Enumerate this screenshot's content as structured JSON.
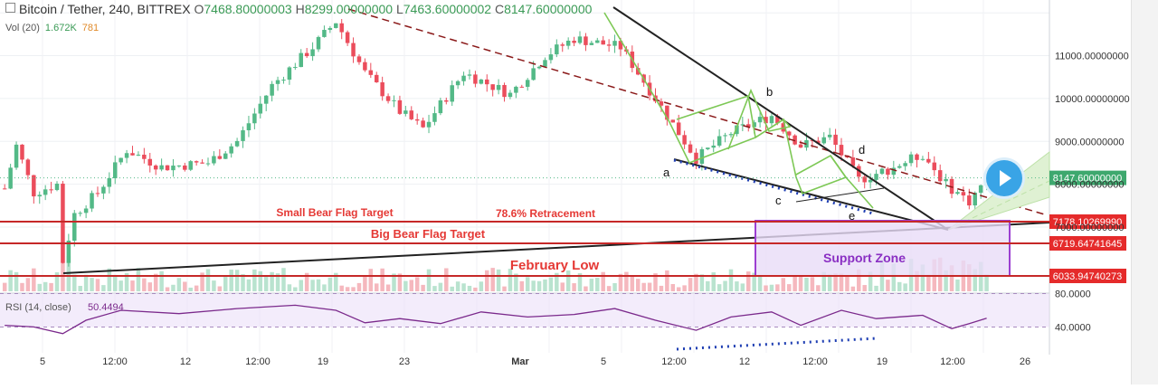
{
  "header": {
    "symbol": "Bitcoin / Tether, 240, BITTREX",
    "o_label": "O",
    "o_value": "7468.80000003",
    "h_label": "H",
    "h_value": "8299.00000000",
    "l_label": "L",
    "l_value": "7463.60000002",
    "c_label": "C",
    "c_value": "8147.60000000"
  },
  "volume_legend": {
    "label": "Vol (20)",
    "value": "1.672K",
    "ma": "781"
  },
  "rsi_legend": {
    "label": "RSI (14, close)",
    "value": "50.4494"
  },
  "colors": {
    "up": "#53b987",
    "down": "#eb4d5c",
    "line": "#c62828",
    "channel": "#7dc855",
    "trend": "#222222",
    "dashed": "#8b1a1a",
    "rsi": "#7b2a8c",
    "support": "#9c3fd1",
    "rsi_band": "#e9dcf7",
    "label_red": "#e53935",
    "accent": "#39a4e6"
  },
  "chart_data": {
    "type": "candlestick",
    "title": "Bitcoin / Tether, 240, BITTREX",
    "ylim": [
      5500,
      12300
    ],
    "y_ticks": [
      "11000.00000000",
      "10000.00000000",
      "9000.00000000",
      "8000.00000000",
      "7000.00000000"
    ],
    "x_ticks": [
      "5",
      "12:00",
      "12",
      "12:00",
      "19",
      "23",
      "Mar",
      "5",
      "12:00",
      "12",
      "12:00",
      "19",
      "12:00",
      "26"
    ],
    "price_path": [
      [
        0,
        7900
      ],
      [
        2,
        8900
      ],
      [
        5,
        7800
      ],
      [
        9,
        8000
      ],
      [
        10,
        6200
      ],
      [
        12,
        7300
      ],
      [
        16,
        7800
      ],
      [
        21,
        8800
      ],
      [
        27,
        8400
      ],
      [
        35,
        8500
      ],
      [
        40,
        9000
      ],
      [
        46,
        10300
      ],
      [
        53,
        11200
      ],
      [
        57,
        11800
      ],
      [
        62,
        10600
      ],
      [
        68,
        9700
      ],
      [
        72,
        9300
      ],
      [
        79,
        10600
      ],
      [
        87,
        10100
      ],
      [
        93,
        11000
      ],
      [
        98,
        11400
      ],
      [
        106,
        11200
      ],
      [
        113,
        9800
      ],
      [
        119,
        8600
      ],
      [
        125,
        9200
      ],
      [
        132,
        9600
      ],
      [
        137,
        8900
      ],
      [
        142,
        9100
      ],
      [
        147,
        8100
      ],
      [
        153,
        8400
      ],
      [
        158,
        8700
      ],
      [
        162,
        8000
      ],
      [
        166,
        7600
      ],
      [
        169,
        8147
      ]
    ],
    "horizontal_levels": [
      {
        "label": "Small Bear Flag Target",
        "value": 7178.1026999,
        "price_tag": "7178.10269990"
      },
      {
        "label": "Big Bear Flag Target",
        "value": 6719.64741645,
        "price_tag": "6719.64741645"
      },
      {
        "label": "February Low",
        "value": 6033.94740273,
        "price_tag": "6033.94740273"
      }
    ],
    "annotations": [
      "78.6% Retracement",
      "Support Zone",
      "a",
      "b",
      "c",
      "d",
      "e"
    ],
    "last_price": "8147.60000000",
    "rsi": {
      "levels": [
        "80.0000",
        "40.0000"
      ],
      "last": 50.4494,
      "path": [
        [
          0,
          42
        ],
        [
          5,
          40
        ],
        [
          10,
          32
        ],
        [
          14,
          48
        ],
        [
          20,
          60
        ],
        [
          30,
          56
        ],
        [
          40,
          62
        ],
        [
          50,
          66
        ],
        [
          57,
          60
        ],
        [
          62,
          45
        ],
        [
          68,
          50
        ],
        [
          75,
          44
        ],
        [
          82,
          58
        ],
        [
          90,
          52
        ],
        [
          98,
          55
        ],
        [
          105,
          62
        ],
        [
          112,
          48
        ],
        [
          119,
          36
        ],
        [
          125,
          52
        ],
        [
          132,
          58
        ],
        [
          137,
          42
        ],
        [
          144,
          60
        ],
        [
          150,
          50
        ],
        [
          158,
          54
        ],
        [
          163,
          38
        ],
        [
          166,
          44
        ],
        [
          169,
          50.4
        ]
      ]
    }
  }
}
